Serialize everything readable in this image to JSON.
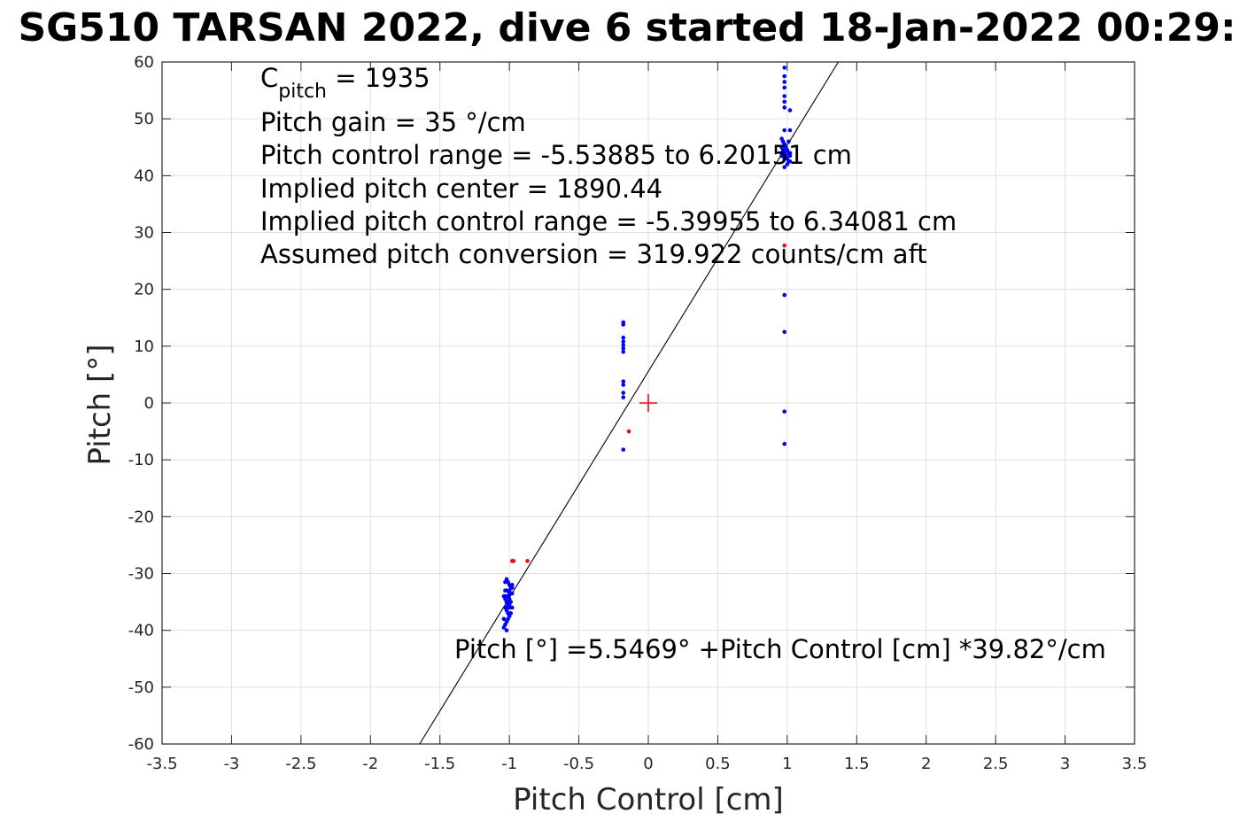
{
  "chart_data": {
    "type": "scatter",
    "title": "SG510 TARSAN 2022, dive 6 started 18-Jan-2022 00:29:",
    "xlabel": "Pitch Control [cm]",
    "ylabel": "Pitch [°]",
    "xlim": [
      -3.5,
      3.5
    ],
    "ylim": [
      -60,
      60
    ],
    "xticks": [
      "-3.5",
      "-3",
      "-2.5",
      "-2",
      "-1.5",
      "-1",
      "-0.5",
      "0",
      "0.5",
      "1",
      "1.5",
      "2",
      "2.5",
      "3",
      "3.5"
    ],
    "yticks": [
      "-60",
      "-50",
      "-40",
      "-30",
      "-20",
      "-10",
      "0",
      "10",
      "20",
      "30",
      "40",
      "50",
      "60"
    ],
    "grid": true,
    "annotations": {
      "c_pitch_symbol": "C",
      "c_pitch_sub": "pitch",
      "c_pitch_value": " = 1935",
      "gain": "Pitch gain = 35 °/cm",
      "range": "Pitch control range = -5.53885 to 6.20151 cm",
      "center": "Implied pitch center = 1890.44",
      "implied_range": "Implied pitch control range = -5.39955 to 6.34081 cm",
      "conversion": "Assumed pitch conversion = 319.922 counts/cm aft",
      "fit_equation": "Pitch [°] =5.5469° +Pitch Control [cm] *39.82°/cm"
    },
    "fit": {
      "intercept": 5.5469,
      "slope": 39.82
    },
    "center_marker": {
      "x": 0,
      "y": 0
    },
    "series": [
      {
        "color": "#0000ff",
        "x": [
          -1.02,
          -1.01,
          -1.0,
          -0.99,
          -1.03,
          -1.02,
          -1.0,
          -0.98,
          -1.01,
          -1.04,
          -1.03,
          -1.0,
          -0.99,
          -1.02,
          -1.01,
          -1.0,
          -0.98,
          -1.03,
          -1.02,
          -1.01,
          -0.99,
          -1.0,
          -1.04,
          -1.02,
          -1.01,
          -0.98,
          -1.0,
          -1.03,
          -1.02,
          -1.01,
          -1.0,
          -1.03,
          -1.04,
          -1.02,
          -0.99,
          -1.0,
          -1.01,
          -1.02,
          -0.98,
          -1.03,
          -0.18,
          -0.18,
          -0.18,
          -0.18,
          -0.18,
          -0.18,
          -0.18,
          -0.18,
          -0.18,
          -0.18,
          -0.18,
          -0.18,
          0.98,
          0.98,
          0.98,
          0.98,
          0.98,
          0.98,
          0.98,
          1.02,
          0.98,
          1.02,
          0.96,
          0.97,
          0.98,
          0.99,
          1.0,
          1.01,
          1.02,
          0.96,
          0.97,
          0.98,
          0.99,
          1.0,
          1.01,
          0.96,
          0.98,
          1.0,
          1.02,
          0.97,
          0.99,
          1.01,
          0.98,
          1.0,
          0.96,
          1.02,
          0.98,
          0.98,
          0.98,
          0.98,
          0.98
        ],
        "y": [
          -31,
          -31.5,
          -32,
          -32.5,
          -33,
          -33,
          -33.5,
          -33.5,
          -34,
          -34,
          -34.5,
          -34.5,
          -35,
          -35,
          -35.5,
          -35.5,
          -36,
          -36,
          -36.5,
          -37,
          -37,
          -37.5,
          -38,
          -38.5,
          -38,
          -32,
          -33,
          -34,
          -35,
          -36,
          -37,
          -39,
          -39.5,
          -40,
          -36,
          -35,
          -34,
          -33,
          -32.5,
          -31.5,
          14.2,
          13.8,
          11.5,
          10.8,
          10.2,
          9.6,
          9.0,
          3.8,
          3.2,
          1.8,
          1.0,
          -8.2,
          59,
          57.5,
          56.5,
          55.5,
          54,
          53,
          52,
          51.5,
          48,
          48,
          46.5,
          46,
          45.5,
          45,
          44.5,
          44,
          43.5,
          45,
          44.5,
          44,
          43.5,
          43,
          42.5,
          44,
          43,
          42,
          44,
          46,
          45,
          46,
          45.5,
          44.5,
          43.5,
          42.5,
          41.5,
          19,
          12.5,
          -1.5,
          -7.2
        ],
        "name": ""
      },
      {
        "color": "#ff0000",
        "x": [
          -0.98,
          -0.97,
          -0.87,
          -0.14,
          0.98
        ],
        "y": [
          -27.8,
          -27.8,
          -27.8,
          -5.0,
          27.7
        ],
        "name": ""
      }
    ]
  }
}
